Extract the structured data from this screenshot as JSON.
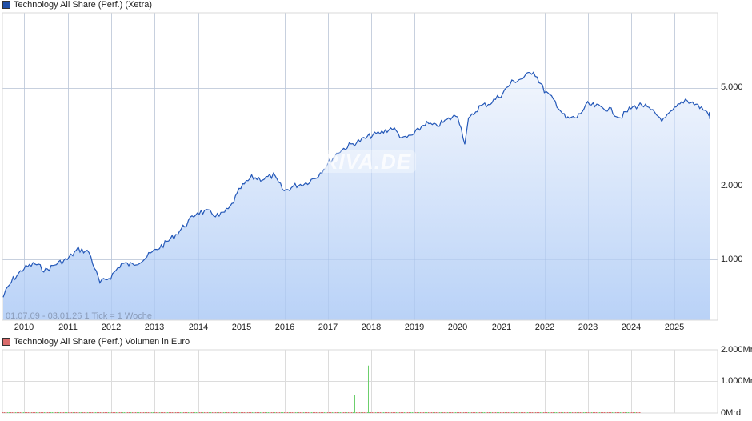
{
  "price_panel": {
    "legend_label": "Technology All Share (Perf.) (Xetra)",
    "legend_color": "#1f4fa8",
    "range_text": "01.07.09 - 03.01.26   1 Tick = 1 Woche",
    "watermark": "ARIVA.DE",
    "y_labels": [
      {
        "text": "5.000",
        "value": 5000
      },
      {
        "text": "2.000",
        "value": 2000
      },
      {
        "text": "1.000",
        "value": 1000
      }
    ]
  },
  "volume_panel": {
    "legend_label": "Technology All Share (Perf.) Volumen in Euro",
    "legend_color": "#d96b6b",
    "y_labels": [
      {
        "text": "2.000Mrd",
        "value": 2000
      },
      {
        "text": "1.000Mrd",
        "value": 1000
      },
      {
        "text": "0Mrd",
        "value": 0
      }
    ]
  },
  "x_labels": [
    "2010",
    "2011",
    "2012",
    "2013",
    "2014",
    "2015",
    "2016",
    "2017",
    "2018",
    "2019",
    "2020",
    "2021",
    "2022",
    "2023",
    "2024",
    "2025"
  ],
  "chart_data": [
    {
      "type": "area",
      "title": "Technology All Share (Perf.) (Xetra)",
      "xlabel": "",
      "ylabel": "",
      "yscale": "log",
      "ylim": [
        620,
        8000
      ],
      "grid": true,
      "legend_position": "top-left",
      "x": [
        "2009-07",
        "2009-10",
        "2010-01",
        "2010-04",
        "2010-07",
        "2010-10",
        "2011-01",
        "2011-04",
        "2011-07",
        "2011-10",
        "2012-01",
        "2012-04",
        "2012-07",
        "2012-10",
        "2013-01",
        "2013-04",
        "2013-07",
        "2013-10",
        "2014-01",
        "2014-04",
        "2014-07",
        "2014-10",
        "2015-01",
        "2015-04",
        "2015-07",
        "2015-10",
        "2016-01",
        "2016-04",
        "2016-07",
        "2016-10",
        "2017-01",
        "2017-04",
        "2017-07",
        "2017-10",
        "2018-01",
        "2018-04",
        "2018-07",
        "2018-10",
        "2019-01",
        "2019-04",
        "2019-07",
        "2019-10",
        "2020-01",
        "2020-03",
        "2020-04",
        "2020-07",
        "2020-10",
        "2021-01",
        "2021-04",
        "2021-07",
        "2021-10",
        "2022-01",
        "2022-04",
        "2022-07",
        "2022-10",
        "2023-01",
        "2023-04",
        "2023-07",
        "2023-10",
        "2024-01",
        "2024-04",
        "2024-07",
        "2024-10",
        "2025-01",
        "2025-04",
        "2025-07",
        "2025-10",
        "2026-01"
      ],
      "series": [
        {
          "name": "Technology All Share (Perf.)",
          "values": [
            700,
            830,
            920,
            960,
            900,
            960,
            1000,
            1100,
            1070,
            800,
            850,
            960,
            950,
            1000,
            1080,
            1160,
            1260,
            1400,
            1560,
            1560,
            1500,
            1620,
            1960,
            2160,
            2130,
            2200,
            1900,
            2000,
            2050,
            2180,
            2450,
            2750,
            2920,
            3050,
            3200,
            3300,
            3450,
            3100,
            3250,
            3600,
            3500,
            3700,
            3900,
            3000,
            3700,
            4200,
            4350,
            4700,
            5300,
            5500,
            5900,
            4900,
            4400,
            3750,
            3800,
            4300,
            4200,
            4100,
            3800,
            4150,
            4300,
            4000,
            3700,
            4100,
            4500,
            4300,
            4000,
            3750
          ]
        }
      ]
    },
    {
      "type": "bar",
      "title": "Technology All Share (Perf.) Volumen in Euro",
      "ylabel": "Mrd",
      "ylim": [
        0,
        2000
      ],
      "grid": true,
      "x": [
        "2017-09",
        "2017-12"
      ],
      "series": [
        {
          "name": "Volumen (Mrd Euro)",
          "values": [
            580,
            1500
          ]
        }
      ],
      "note": "all other weeks near 0Mrd"
    }
  ]
}
